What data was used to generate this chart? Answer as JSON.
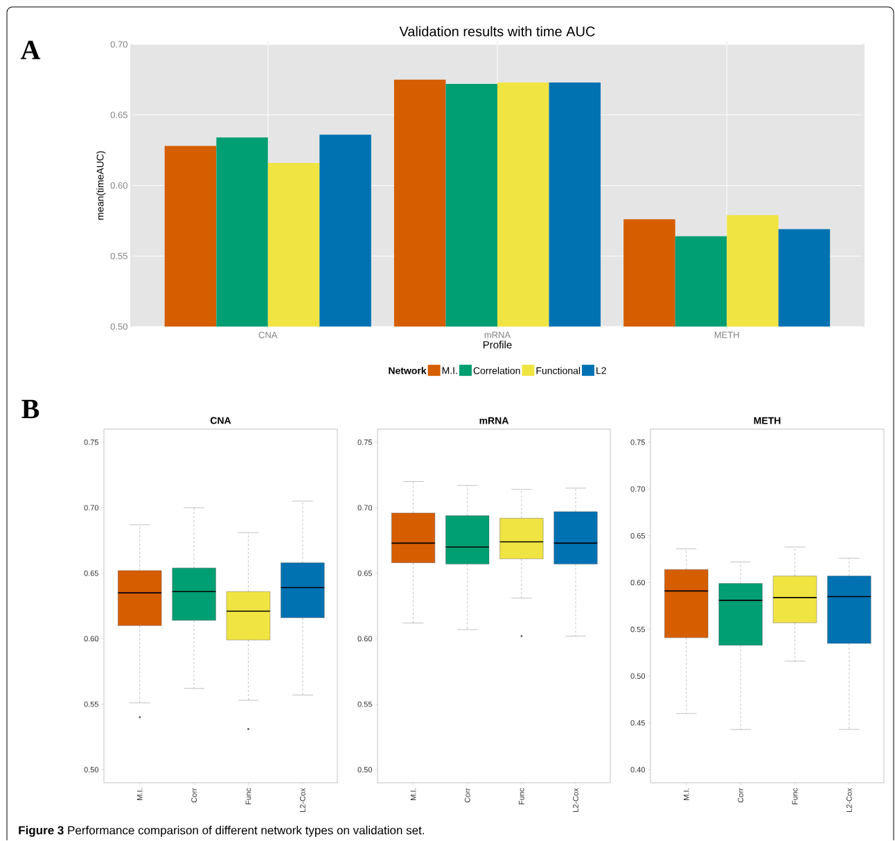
{
  "chart_data": [
    {
      "type": "bar",
      "title": "Validation results with time AUC",
      "xlabel": "Profile",
      "ylabel": "mean(timeAUC)",
      "legend_title": "Network",
      "legend": "bottom",
      "grid": true,
      "annotations": [
        "A",
        "**Figure 3** Performance comparison of different network types on validation set."
      ],
      "categories": [
        "CNA",
        "mRNA",
        "METH"
      ],
      "series": [
        {
          "name": "M.I.",
          "color": "#d55e00",
          "values": [
            0.628,
            0.675,
            0.576
          ]
        },
        {
          "name": "Correlation",
          "color": "#009e73",
          "values": [
            0.634,
            0.672,
            0.564
          ]
        },
        {
          "name": "Functional",
          "color": "#f0e442",
          "values": [
            0.616,
            0.673,
            0.579
          ]
        },
        {
          "name": "L2",
          "color": "#0072b2",
          "values": [
            0.636,
            0.673,
            0.569
          ]
        }
      ],
      "ylim": [
        0.5,
        0.7
      ],
      "yticks": [
        {
          "value": 0.5,
          "label": "0.50"
        },
        {
          "value": 0.55,
          "label": "0.55"
        },
        {
          "value": 0.6,
          "label": "0.60"
        },
        {
          "value": 0.65,
          "label": "0.65"
        },
        {
          "value": 0.7,
          "label": "0.70"
        }
      ]
    },
    {
      "type": "box",
      "title": "CNA",
      "annotations": [
        "B"
      ],
      "categories": [
        "M.I.",
        "Corr",
        "Func",
        "L2-Cox"
      ],
      "colors": [
        "#d55e00",
        "#009e73",
        "#f0e442",
        "#0072b2"
      ],
      "boxes": [
        {
          "low": 0.551,
          "q1": 0.61,
          "median": 0.635,
          "q3": 0.652,
          "high": 0.687,
          "outliers": [
            0.54
          ]
        },
        {
          "low": 0.562,
          "q1": 0.614,
          "median": 0.636,
          "q3": 0.654,
          "high": 0.7
        },
        {
          "low": 0.553,
          "q1": 0.599,
          "median": 0.621,
          "q3": 0.636,
          "high": 0.681,
          "outliers": [
            0.531
          ]
        },
        {
          "low": 0.557,
          "q1": 0.616,
          "median": 0.639,
          "q3": 0.658,
          "high": 0.705
        }
      ],
      "ylim": [
        0.49,
        0.76
      ],
      "yticks": [
        {
          "value": 0.5,
          "label": "0.50"
        },
        {
          "value": 0.55,
          "label": "0.55"
        },
        {
          "value": 0.6,
          "label": "0.60"
        },
        {
          "value": 0.65,
          "label": "0.65"
        },
        {
          "value": 0.7,
          "label": "0.70"
        },
        {
          "value": 0.75,
          "label": "0.75"
        }
      ]
    },
    {
      "type": "box",
      "title": "mRNA",
      "categories": [
        "M.I.",
        "Corr",
        "Func",
        "L2-Cox"
      ],
      "colors": [
        "#d55e00",
        "#009e73",
        "#f0e442",
        "#0072b2"
      ],
      "boxes": [
        {
          "low": 0.612,
          "q1": 0.658,
          "median": 0.673,
          "q3": 0.696,
          "high": 0.72
        },
        {
          "low": 0.607,
          "q1": 0.657,
          "median": 0.67,
          "q3": 0.694,
          "high": 0.717
        },
        {
          "low": 0.631,
          "q1": 0.661,
          "median": 0.674,
          "q3": 0.692,
          "high": 0.714,
          "outliers": [
            0.602
          ]
        },
        {
          "low": 0.602,
          "q1": 0.657,
          "median": 0.673,
          "q3": 0.697,
          "high": 0.715
        }
      ],
      "ylim": [
        0.49,
        0.76
      ],
      "yticks": [
        {
          "value": 0.5,
          "label": "0.50"
        },
        {
          "value": 0.55,
          "label": "0.55"
        },
        {
          "value": 0.6,
          "label": "0.60"
        },
        {
          "value": 0.65,
          "label": "0.65"
        },
        {
          "value": 0.7,
          "label": "0.70"
        },
        {
          "value": 0.75,
          "label": "0.75"
        }
      ]
    },
    {
      "type": "box",
      "title": "METH",
      "categories": [
        "M.I.",
        "Corr",
        "Func",
        "L2-Cox"
      ],
      "colors": [
        "#d55e00",
        "#009e73",
        "#f0e442",
        "#0072b2"
      ],
      "boxes": [
        {
          "low": 0.46,
          "q1": 0.541,
          "median": 0.591,
          "q3": 0.614,
          "high": 0.636
        },
        {
          "low": 0.443,
          "q1": 0.533,
          "median": 0.581,
          "q3": 0.599,
          "high": 0.622
        },
        {
          "low": 0.516,
          "q1": 0.557,
          "median": 0.584,
          "q3": 0.607,
          "high": 0.638
        },
        {
          "low": 0.443,
          "q1": 0.535,
          "median": 0.585,
          "q3": 0.607,
          "high": 0.626
        }
      ],
      "ylim": [
        0.386,
        0.764
      ],
      "yticks": [
        {
          "value": 0.4,
          "label": "0.40"
        },
        {
          "value": 0.45,
          "label": "0.45"
        },
        {
          "value": 0.5,
          "label": "0.50"
        },
        {
          "value": 0.55,
          "label": "0.55"
        },
        {
          "value": 0.6,
          "label": "0.60"
        },
        {
          "value": 0.65,
          "label": "0.65"
        },
        {
          "value": 0.7,
          "label": "0.70"
        },
        {
          "value": 0.75,
          "label": "0.75"
        }
      ]
    }
  ]
}
